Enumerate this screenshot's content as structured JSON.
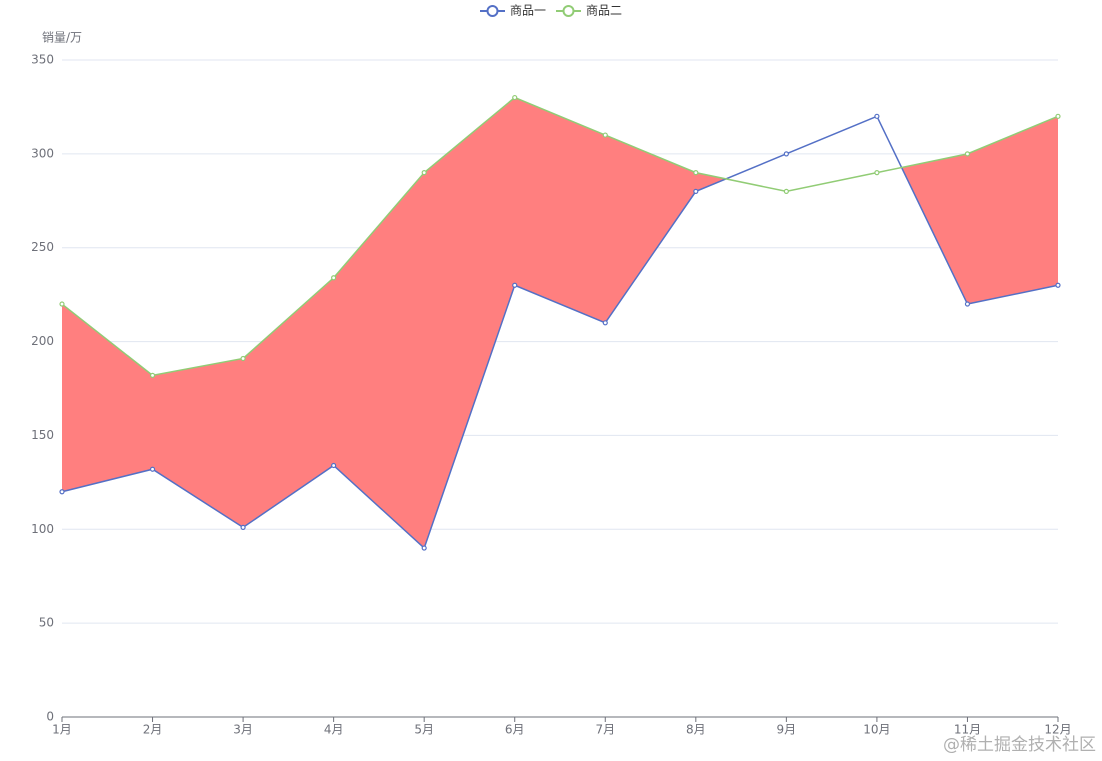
{
  "chart_data": {
    "type": "line",
    "y_axis_label": "销量/万",
    "categories": [
      "1月",
      "2月",
      "3月",
      "4月",
      "5月",
      "6月",
      "7月",
      "8月",
      "9月",
      "10月",
      "11月",
      "12月"
    ],
    "series": [
      {
        "name": "商品一",
        "color": "#5470c6",
        "values": [
          120,
          132,
          101,
          134,
          90,
          230,
          210,
          280,
          300,
          320,
          220,
          230
        ]
      },
      {
        "name": "商品二",
        "color": "#91cc75",
        "values": [
          220,
          182,
          191,
          234,
          290,
          330,
          310,
          290,
          280,
          290,
          300,
          320
        ]
      }
    ],
    "difference_fill": "#ff7f7f",
    "ylim": [
      0,
      350
    ],
    "yticks": [
      0,
      50,
      100,
      150,
      200,
      250,
      300,
      350
    ],
    "grid": true,
    "legend": "top",
    "watermark": "@稀土掘金技术社区"
  }
}
